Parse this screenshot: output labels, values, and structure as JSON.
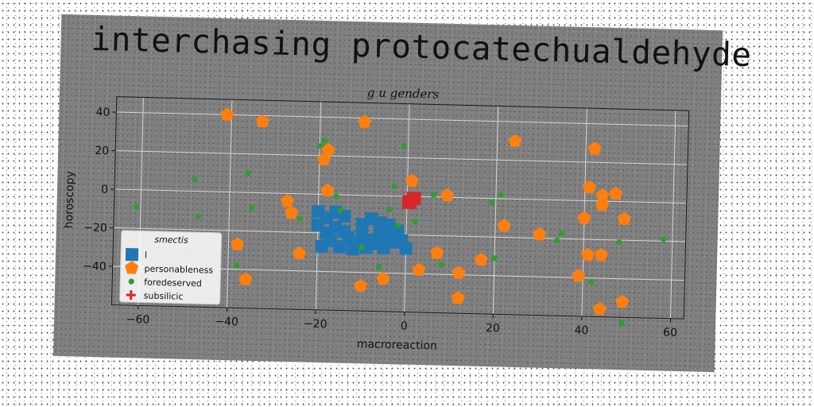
{
  "title": "interchasing protocatechualdehyde",
  "chart_data": {
    "type": "scatter",
    "subtitle": "g u genders",
    "xlabel": "macroreaction",
    "ylabel": "horoscopy",
    "xlim": [
      -66,
      63
    ],
    "ylim": [
      -60,
      48
    ],
    "xticks": [
      -60,
      -40,
      -20,
      0,
      20,
      40,
      60
    ],
    "yticks": [
      -40,
      -20,
      0,
      20,
      40
    ],
    "grid": true,
    "legend": {
      "title": "smectis",
      "position": "lower-left"
    },
    "series": [
      {
        "name": "l",
        "marker": "square",
        "color": "#1f77b4",
        "points": [
          [
            -20,
            -9
          ],
          [
            -18,
            -12
          ],
          [
            -16,
            -9
          ],
          [
            -14,
            -11
          ],
          [
            -20,
            -16
          ],
          [
            -18,
            -20
          ],
          [
            -16,
            -17
          ],
          [
            -14,
            -19
          ],
          [
            -17,
            -24
          ],
          [
            -15,
            -27
          ],
          [
            -13,
            -22
          ],
          [
            -11,
            -25
          ],
          [
            -19,
            -27
          ],
          [
            -10,
            -15
          ],
          [
            -8,
            -12
          ],
          [
            -6,
            -14
          ],
          [
            -10,
            -20
          ],
          [
            -8,
            -23
          ],
          [
            -6,
            -19
          ],
          [
            -4,
            -21
          ],
          [
            -9,
            -27
          ],
          [
            -7,
            -25
          ],
          [
            -5,
            -27
          ],
          [
            -3,
            -24
          ],
          [
            -12,
            -28
          ],
          [
            -2,
            -18
          ],
          [
            -1,
            -23
          ],
          [
            0,
            -27
          ],
          [
            -4,
            -15
          ]
        ]
      },
      {
        "name": "personableness",
        "marker": "pentagon",
        "color": "#ff7f0e",
        "points": [
          [
            -41,
            40
          ],
          [
            -33,
            37
          ],
          [
            -10,
            38
          ],
          [
            24,
            30
          ],
          [
            42,
            27
          ],
          [
            -19,
            18
          ],
          [
            -18,
            23
          ],
          [
            1,
            8
          ],
          [
            -18,
            2
          ],
          [
            9,
            1
          ],
          [
            41,
            7
          ],
          [
            44,
            3
          ],
          [
            47,
            4
          ],
          [
            44,
            -2
          ],
          [
            49,
            -9
          ],
          [
            -27,
            -4
          ],
          [
            -26,
            -10
          ],
          [
            -38,
            -27
          ],
          [
            -24,
            -31
          ],
          [
            22,
            -14
          ],
          [
            30,
            -18
          ],
          [
            40,
            -9
          ],
          [
            -10,
            -47
          ],
          [
            41,
            -28
          ],
          [
            44,
            -28
          ],
          [
            7,
            -29
          ],
          [
            17,
            -32
          ],
          [
            12,
            -39
          ],
          [
            3,
            -38
          ],
          [
            39,
            -39
          ],
          [
            -36,
            -45
          ],
          [
            -5,
            -43
          ],
          [
            12,
            -52
          ],
          [
            44,
            -56
          ],
          [
            49,
            -52
          ]
        ]
      },
      {
        "name": "foredeserved",
        "marker": "circle",
        "color": "#2ca02c",
        "points": [
          [
            -20,
            25
          ],
          [
            -19,
            28
          ],
          [
            -1,
            26
          ],
          [
            -3,
            5
          ],
          [
            -61,
            -9
          ],
          [
            -48,
            6
          ],
          [
            -36,
            10
          ],
          [
            -35,
            -8
          ],
          [
            -47,
            -13
          ],
          [
            -24,
            -13
          ],
          [
            -16,
            -1
          ],
          [
            -15,
            -8
          ],
          [
            -4,
            -7
          ],
          [
            -2,
            -15
          ],
          [
            2,
            -13
          ],
          [
            6,
            1
          ],
          [
            19,
            -2
          ],
          [
            21,
            2
          ],
          [
            8,
            -35
          ],
          [
            -6,
            -37
          ],
          [
            -10,
            -27
          ],
          [
            20,
            -31
          ],
          [
            -38,
            -38
          ],
          [
            34,
            -21
          ],
          [
            35,
            -17
          ],
          [
            48,
            -21
          ],
          [
            58,
            -19
          ],
          [
            42,
            -42
          ],
          [
            49,
            -63
          ]
        ]
      },
      {
        "name": "subsilicic",
        "marker": "plus",
        "color": "#d62728",
        "points": [
          [
            0,
            -2
          ],
          [
            2,
            -2
          ],
          [
            1,
            -4
          ],
          [
            1,
            0
          ],
          [
            0,
            -4
          ],
          [
            2,
            0
          ]
        ]
      }
    ]
  }
}
